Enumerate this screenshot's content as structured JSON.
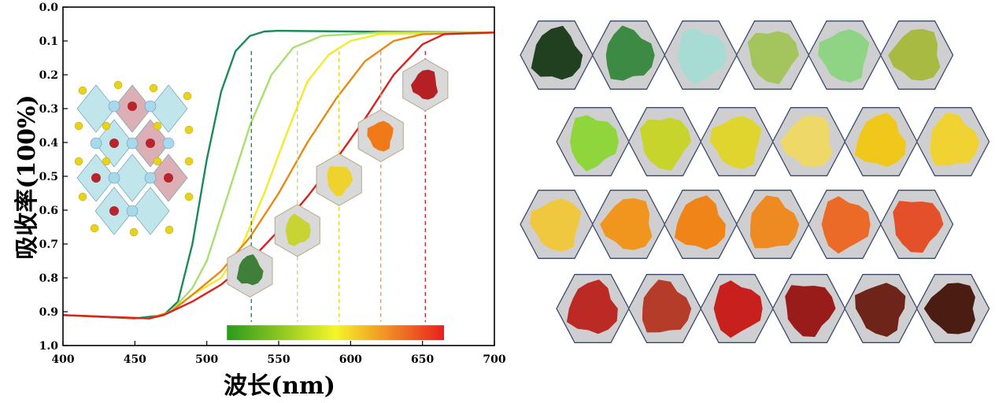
{
  "chart_data": {
    "type": "line",
    "title": "",
    "xlabel": "波长(nm)",
    "ylabel": "吸收率(100%)",
    "xlim": [
      400,
      700
    ],
    "ylim": [
      0.0,
      1.0
    ],
    "y_inverted": true,
    "xticks": [
      "400",
      "450",
      "500",
      "550",
      "600",
      "650",
      "700"
    ],
    "yticks": [
      "0.0",
      "0.1",
      "0.2",
      "0.3",
      "0.4",
      "0.5",
      "0.6",
      "0.7",
      "0.8",
      "0.9",
      "1.0"
    ],
    "grid": false,
    "legend": "none",
    "series": [
      {
        "color": "#1a8a5a",
        "points": [
          [
            400,
            0.91
          ],
          [
            450,
            0.92
          ],
          [
            470,
            0.91
          ],
          [
            480,
            0.87
          ],
          [
            490,
            0.7
          ],
          [
            500,
            0.45
          ],
          [
            510,
            0.25
          ],
          [
            520,
            0.13
          ],
          [
            530,
            0.085
          ],
          [
            540,
            0.072
          ],
          [
            550,
            0.07
          ],
          [
            600,
            0.072
          ],
          [
            700,
            0.075
          ]
        ]
      },
      {
        "color": "#a8e070",
        "points": [
          [
            400,
            0.91
          ],
          [
            460,
            0.92
          ],
          [
            475,
            0.9
          ],
          [
            490,
            0.83
          ],
          [
            500,
            0.75
          ],
          [
            515,
            0.55
          ],
          [
            530,
            0.35
          ],
          [
            545,
            0.2
          ],
          [
            560,
            0.12
          ],
          [
            580,
            0.085
          ],
          [
            620,
            0.075
          ],
          [
            700,
            0.075
          ]
        ]
      },
      {
        "color": "#f2ea2a",
        "points": [
          [
            400,
            0.91
          ],
          [
            460,
            0.92
          ],
          [
            475,
            0.9
          ],
          [
            490,
            0.85
          ],
          [
            510,
            0.8
          ],
          [
            525,
            0.7
          ],
          [
            540,
            0.55
          ],
          [
            555,
            0.38
          ],
          [
            570,
            0.22
          ],
          [
            585,
            0.14
          ],
          [
            600,
            0.1
          ],
          [
            620,
            0.08
          ],
          [
            700,
            0.075
          ]
        ]
      },
      {
        "color": "#e88a10",
        "points": [
          [
            400,
            0.91
          ],
          [
            460,
            0.92
          ],
          [
            475,
            0.9
          ],
          [
            490,
            0.85
          ],
          [
            510,
            0.78
          ],
          [
            530,
            0.68
          ],
          [
            550,
            0.55
          ],
          [
            570,
            0.4
          ],
          [
            590,
            0.27
          ],
          [
            610,
            0.16
          ],
          [
            630,
            0.1
          ],
          [
            650,
            0.08
          ],
          [
            700,
            0.075
          ]
        ]
      },
      {
        "color": "#dc2020",
        "points": [
          [
            400,
            0.91
          ],
          [
            460,
            0.92
          ],
          [
            470,
            0.91
          ],
          [
            490,
            0.87
          ],
          [
            510,
            0.82
          ],
          [
            530,
            0.75
          ],
          [
            550,
            0.66
          ],
          [
            570,
            0.56
          ],
          [
            590,
            0.45
          ],
          [
            610,
            0.33
          ],
          [
            630,
            0.2
          ],
          [
            650,
            0.11
          ],
          [
            665,
            0.08
          ],
          [
            700,
            0.075
          ]
        ]
      }
    ],
    "markers": [
      {
        "x": 531,
        "color": "#1a8a5a"
      },
      {
        "x": 563,
        "color": "#b8e07a"
      },
      {
        "x": 592,
        "color": "#e6d82a"
      },
      {
        "x": 621,
        "color": "#e8a050"
      },
      {
        "x": 652,
        "color": "#c82828"
      }
    ],
    "colorbar": {
      "x_start": 514,
      "x_end": 665,
      "y": 0.95,
      "colors": [
        "#2a9a1a",
        "#f5f52a",
        "#ea1f1f"
      ]
    },
    "inset_samples": [
      {
        "x": 530,
        "y": 0.78,
        "color": "#3f7f3a"
      },
      {
        "x": 563,
        "y": 0.66,
        "color": "#c8d434"
      },
      {
        "x": 592,
        "y": 0.51,
        "color": "#f0d22e"
      },
      {
        "x": 621,
        "y": 0.38,
        "color": "#f07a18"
      },
      {
        "x": 652,
        "y": 0.23,
        "color": "#b42024"
      }
    ]
  },
  "swatches": {
    "rows": [
      [
        "#21401f",
        "#3c8a44",
        "#a6dcd4",
        "#a4c45e",
        "#8fd484",
        "#a8ba42"
      ],
      [
        "#8ed63c",
        "#c6d42c",
        "#e0d42e",
        "#eed868",
        "#f0c81c",
        "#f0d232"
      ],
      [
        "#f0c840",
        "#f0961e",
        "#f08418",
        "#ee8a22",
        "#ec6a28",
        "#e4502a"
      ],
      [
        "#bc2a26",
        "#b63c2a",
        "#c8201c",
        "#9a1c1a",
        "#6e2418",
        "#4a1c12"
      ]
    ]
  }
}
